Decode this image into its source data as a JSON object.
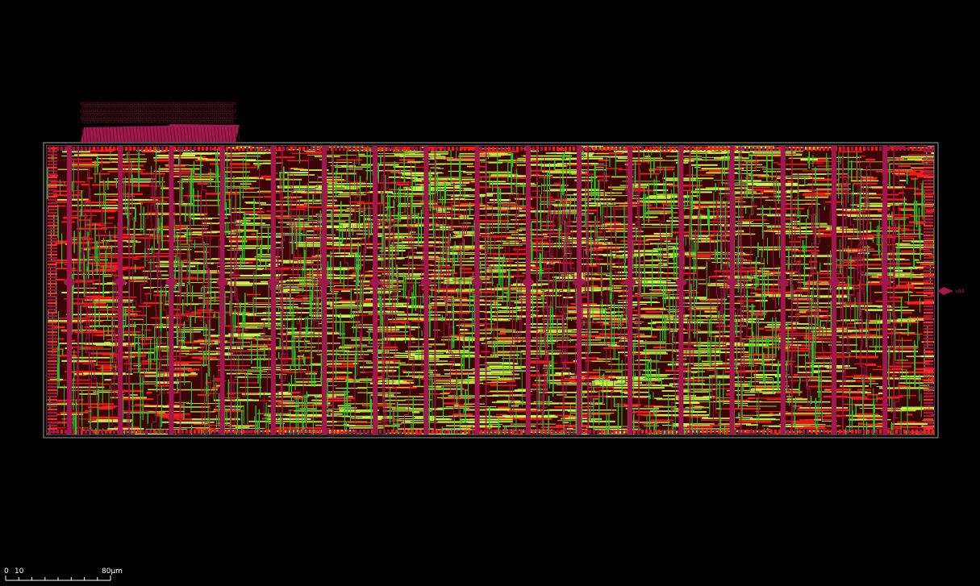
{
  "viewer": {
    "background": "#000000",
    "die_outline_color": "#9aa0a0"
  },
  "layers": {
    "metal1": "#ff1a1a",
    "metal2": "#22cc22",
    "metal3": "#c6ff4a",
    "power_straps": "#a0184e",
    "cells": "#7a0f2f"
  },
  "power_straps": {
    "count": 17
  },
  "pin": {
    "label": "vdd",
    "icon": "pin-diamond-icon"
  },
  "scale_bar": {
    "start": "0",
    "tick": "10",
    "end": "80µm"
  }
}
